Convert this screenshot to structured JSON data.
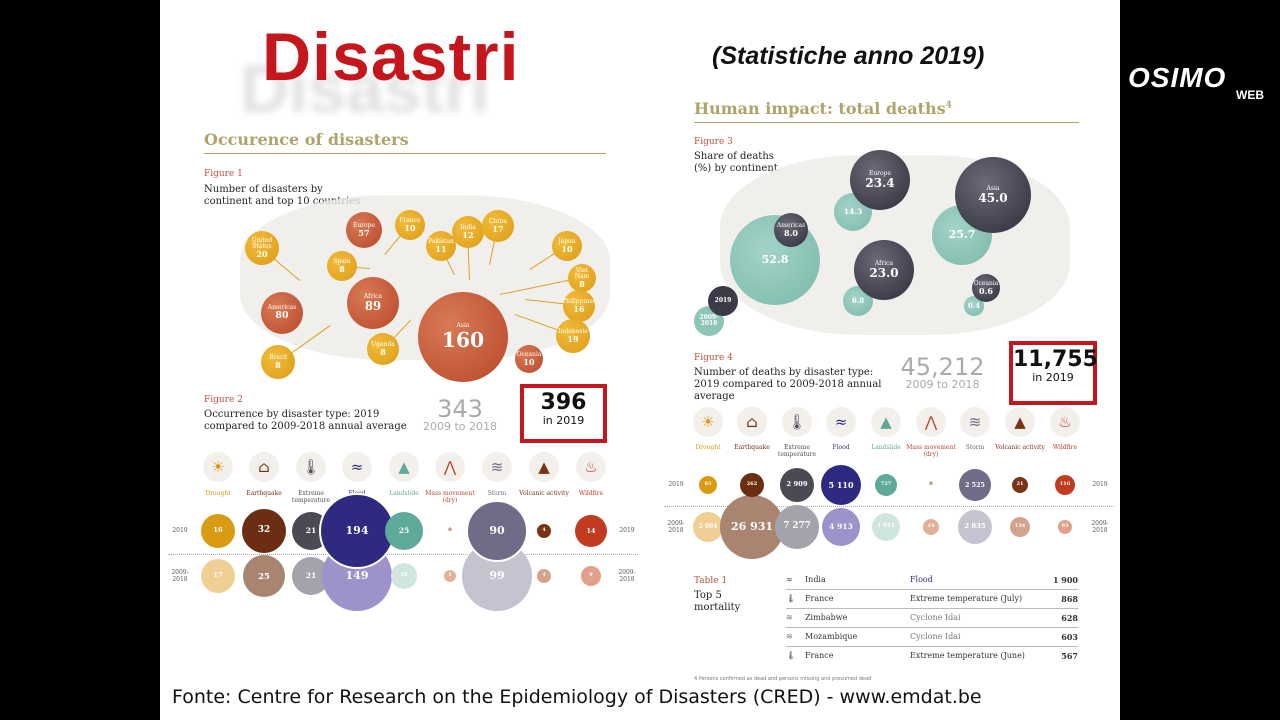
{
  "title": "Disastri",
  "subtitle": "(Statistiche anno 2019)",
  "logo": {
    "main": "OSIMO",
    "sub": "WEB"
  },
  "left": {
    "heading": "Occurence of disasters",
    "fig1": {
      "label": "Figure 1",
      "title": "Number of disasters by continent and top 10 countries",
      "continents": [
        {
          "name": "Europe",
          "value": 57
        },
        {
          "name": "Americas",
          "value": 80
        },
        {
          "name": "Africa",
          "value": 89
        },
        {
          "name": "Asia",
          "value": 160
        },
        {
          "name": "Oceania",
          "value": 10
        }
      ],
      "countries": [
        {
          "name": "United States",
          "value": 20
        },
        {
          "name": "France",
          "value": 10
        },
        {
          "name": "Spain",
          "value": 8
        },
        {
          "name": "Pakistan",
          "value": 11
        },
        {
          "name": "India",
          "value": 12
        },
        {
          "name": "China",
          "value": 17
        },
        {
          "name": "Japan",
          "value": 10
        },
        {
          "name": "Viet Nam",
          "value": 8
        },
        {
          "name": "Philippines",
          "value": 16
        },
        {
          "name": "Indonesia",
          "value": 19
        },
        {
          "name": "Uganda",
          "value": 8
        },
        {
          "name": "Brazil",
          "value": 8
        }
      ]
    },
    "fig2": {
      "label": "Figure 2",
      "title": "Occurrence by disaster type: 2019 compared to 2009-2018 annual average",
      "avg_total": "343",
      "avg_label": "2009 to 2018",
      "total": "396",
      "total_label": "in 2019",
      "row_2019": "2019",
      "row_avg": "2009-2018",
      "values_2019": [
        "16",
        "32",
        "21",
        "194",
        "25",
        "0",
        "90",
        "4",
        "14"
      ],
      "values_avg": [
        "17",
        "25",
        "21",
        "149",
        "19",
        "1",
        "99",
        "4",
        "9"
      ]
    }
  },
  "types": [
    {
      "name": "Drought",
      "icon": "drought-icon",
      "color": "#d89b13"
    },
    {
      "name": "Earthquake",
      "icon": "earthquake-icon",
      "color": "#6b2e12"
    },
    {
      "name": "Extreme temperature",
      "icon": "thermometer-icon",
      "color": "#4a4a55"
    },
    {
      "name": "Flood",
      "icon": "flood-icon",
      "color": "#2e2a80"
    },
    {
      "name": "Landslide",
      "icon": "landslide-icon",
      "color": "#5fa99a"
    },
    {
      "name": "Mass movement (dry)",
      "icon": "mass-movement-icon",
      "color": "#b8452a"
    },
    {
      "name": "Storm",
      "icon": "storm-icon",
      "color": "#6e6c86"
    },
    {
      "name": "Volcanic activity",
      "icon": "volcano-icon",
      "color": "#7a3315"
    },
    {
      "name": "Wildfire",
      "icon": "wildfire-icon",
      "color": "#c23a1f"
    }
  ],
  "right": {
    "heading": "Human impact: total deaths",
    "footnote_ref": "4",
    "fig3": {
      "label": "Figure 3",
      "title": "Share of deaths (%) by continent",
      "data": [
        {
          "name": "Europe",
          "v2019": "23.4",
          "vavg": "14.3"
        },
        {
          "name": "Asia",
          "v2019": "45.0",
          "vavg": "25.7"
        },
        {
          "name": "Americas",
          "v2019": "8.0",
          "vavg": "52.8"
        },
        {
          "name": "Africa",
          "v2019": "23.0",
          "vavg": "6.8"
        },
        {
          "name": "Oceania",
          "v2019": "0.6",
          "vavg": "0.4"
        }
      ],
      "legend_2019": "2019",
      "legend_avg": "2009-2018"
    },
    "fig4": {
      "label": "Figure 4",
      "title": "Number of deaths by disaster type: 2019 compared to 2009-2018 annual average",
      "avg_total": "45,212",
      "avg_label": "2009 to 2018",
      "total": "11,755",
      "total_label": "in 2019",
      "row_2019": "2019",
      "row_avg": "2009-2018",
      "values_2019": [
        "85",
        "262",
        "2 909",
        "5 110",
        "727",
        "0",
        "2 525",
        "21",
        "116"
      ],
      "values_avg": [
        "2 004",
        "26 931",
        "7 277",
        "4 913",
        "1 011",
        "14",
        "2 835",
        "134",
        "93"
      ]
    },
    "table": {
      "label": "Table 1",
      "title": "Top 5 mortality",
      "rows": [
        {
          "icon": "flood-icon",
          "country": "India",
          "type": "Flood",
          "deaths": "1 900"
        },
        {
          "icon": "thermometer-icon",
          "country": "France",
          "type": "Extreme temperature (July)",
          "deaths": "868"
        },
        {
          "icon": "storm-icon",
          "country": "Zimbabwe",
          "type": "Cyclone Idai",
          "deaths": "628"
        },
        {
          "icon": "storm-icon",
          "country": "Mozambique",
          "type": "Cyclone Idai",
          "deaths": "603"
        },
        {
          "icon": "thermometer-icon",
          "country": "France",
          "type": "Extreme temperature (June)",
          "deaths": "567"
        }
      ]
    },
    "footnote": "4  Persons confirmed as dead and persons missing and presumed dead"
  },
  "footer": "Fonte: Centre for Research on the Epidemiology of Disasters (CRED) - www.emdat.be"
}
